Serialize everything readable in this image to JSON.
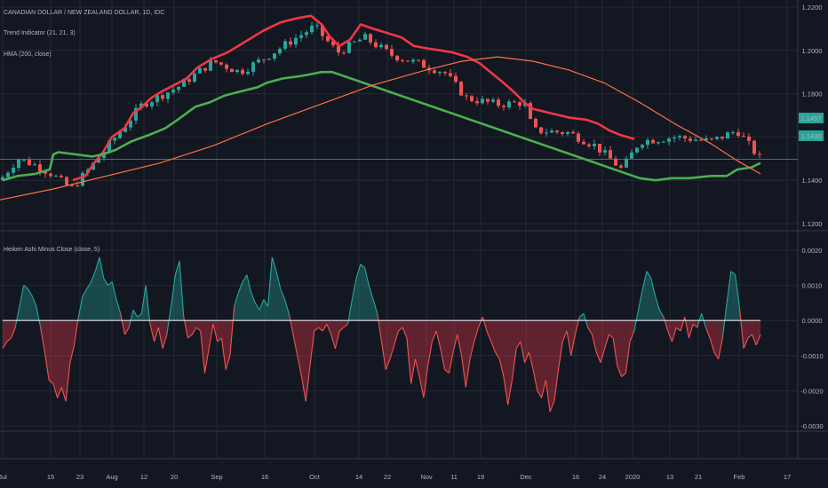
{
  "header": {
    "symbol_title": "CANADIAN DOLLAR / NEW ZEALAND DOLLAR, 1D, IDC",
    "indicator_1": "Trend Indicator (21, 21, 3)",
    "indicator_2": "HMA (200, close)",
    "sub_indicator": "Heiken Ashi Minus Close (close, 5)"
  },
  "colors": {
    "background": "#131722",
    "grid": "#2a2e39",
    "up_candle": "#26a69a",
    "down_candle": "#ef5350",
    "trend_red": "#f23645",
    "trend_green": "#4caf50",
    "hma": "#ff7043",
    "price_line": "#26a69a",
    "zero_line": "#e0e3eb",
    "area_green": "rgba(38,166,154,0.35)",
    "area_red": "rgba(242,54,69,0.35)"
  },
  "price_badges": {
    "last_price": "1.1497",
    "hma_value": "1.1430"
  },
  "chart_data": [
    {
      "type": "candlestick",
      "title": "CANADIAN DOLLAR / NEW ZEALAND DOLLAR, 1D, IDC",
      "y_ticks": [
        "1.1200",
        "1.1400",
        "1.1600",
        "1.1800",
        "1.2000",
        "1.2200"
      ],
      "ylim": [
        1.12,
        1.22
      ],
      "x_ticks": [
        "Jul",
        "15",
        "23",
        "Aug",
        "12",
        "20",
        "Sep",
        "16",
        "Oct",
        "14",
        "22",
        "Nov",
        "11",
        "19",
        "Dec",
        "16",
        "24",
        "2020",
        "13",
        "21",
        "Feb",
        "17"
      ],
      "last_price": 1.1497,
      "series": [
        {
          "name": "Trend Indicator (21, 21, 3) – resistance",
          "color": "#f23645",
          "values": [
            [
              82,
              1.14
            ],
            [
              96,
              1.142
            ],
            [
              106,
              1.148
            ],
            [
              116,
              1.153
            ],
            [
              126,
              1.16
            ],
            [
              140,
              1.164
            ],
            [
              150,
              1.171
            ],
            [
              160,
              1.174
            ],
            [
              170,
              1.178
            ],
            [
              182,
              1.181
            ],
            [
              196,
              1.184
            ],
            [
              210,
              1.187
            ],
            [
              222,
              1.192
            ],
            [
              238,
              1.196
            ],
            [
              256,
              1.199
            ],
            [
              276,
              1.204
            ],
            [
              296,
              1.209
            ],
            [
              316,
              1.213
            ],
            [
              336,
              1.215
            ],
            [
              350,
              1.216
            ],
            [
              362,
              1.212
            ],
            [
              372,
              1.206
            ],
            [
              382,
              1.202
            ],
            [
              394,
              1.205
            ],
            [
              406,
              1.212
            ],
            [
              420,
              1.21
            ],
            [
              436,
              1.208
            ],
            [
              452,
              1.206
            ],
            [
              466,
              1.202
            ],
            [
              480,
              1.201
            ],
            [
              496,
              1.2
            ],
            [
              510,
              1.199
            ],
            [
              526,
              1.197
            ],
            [
              540,
              1.194
            ],
            [
              552,
              1.19
            ],
            [
              564,
              1.186
            ],
            [
              578,
              1.181
            ],
            [
              590,
              1.176
            ],
            [
              600,
              1.173
            ],
            [
              620,
              1.171
            ],
            [
              640,
              1.169
            ],
            [
              660,
              1.168
            ],
            [
              674,
              1.166
            ],
            [
              686,
              1.163
            ],
            [
              698,
              1.161
            ],
            [
              714,
              1.159
            ]
          ]
        },
        {
          "name": "Trend Indicator (21, 21, 3) – support",
          "color": "#4caf50",
          "values": [
            [
              3,
              1.14
            ],
            [
              20,
              1.142
            ],
            [
              40,
              1.143
            ],
            [
              56,
              1.145
            ],
            [
              60,
              1.152
            ],
            [
              66,
              1.153
            ],
            [
              104,
              1.151
            ],
            [
              116,
              1.152
            ],
            [
              130,
              1.154
            ],
            [
              148,
              1.158
            ],
            [
              168,
              1.161
            ],
            [
              186,
              1.164
            ],
            [
              200,
              1.168
            ],
            [
              210,
              1.171
            ],
            [
              220,
              1.174
            ],
            [
              236,
              1.176
            ],
            [
              252,
              1.179
            ],
            [
              270,
              1.181
            ],
            [
              290,
              1.183
            ],
            [
              300,
              1.185
            ],
            [
              318,
              1.187
            ],
            [
              336,
              1.188
            ],
            [
              350,
              1.189
            ],
            [
              362,
              1.19
            ],
            [
              374,
              1.19
            ],
            [
              720,
              1.141
            ],
            [
              738,
              1.14
            ],
            [
              756,
              1.141
            ],
            [
              776,
              1.141
            ],
            [
              800,
              1.142
            ],
            [
              818,
              1.142
            ],
            [
              830,
              1.145
            ],
            [
              846,
              1.146
            ],
            [
              856,
              1.148
            ]
          ]
        },
        {
          "name": "HMA (200, close)",
          "color": "#ff7043",
          "values": [
            [
              0,
              1.131
            ],
            [
              60,
              1.136
            ],
            [
              120,
              1.142
            ],
            [
              180,
              1.148
            ],
            [
              240,
              1.156
            ],
            [
              300,
              1.166
            ],
            [
              360,
              1.175
            ],
            [
              420,
              1.184
            ],
            [
              480,
              1.191
            ],
            [
              520,
              1.195
            ],
            [
              560,
              1.197
            ],
            [
              600,
              1.195
            ],
            [
              640,
              1.191
            ],
            [
              680,
              1.185
            ],
            [
              720,
              1.176
            ],
            [
              760,
              1.166
            ],
            [
              800,
              1.157
            ],
            [
              830,
              1.149
            ],
            [
              856,
              1.143
            ]
          ]
        }
      ]
    },
    {
      "type": "area",
      "title": "Heiken Ashi Minus Close (close, 5)",
      "y_ticks": [
        "0.0020",
        "0.0010",
        "0.0000",
        "-0.0010",
        "-0.0020",
        "-0.0030"
      ],
      "ylim": [
        -0.003,
        0.002
      ],
      "x_ticks": [
        "Jul",
        "15",
        "23",
        "Aug",
        "12",
        "20",
        "Sep",
        "16",
        "Oct",
        "14",
        "22",
        "Nov",
        "11",
        "19",
        "Dec",
        "16",
        "24",
        "2020",
        "13",
        "21",
        "Feb",
        "17"
      ],
      "series": [
        {
          "name": "Heiken Ashi Minus Close",
          "values": [
            -0.0008,
            -0.0006,
            -0.0005,
            -0.0002,
            0.0004,
            0.001,
            0.0009,
            0.0007,
            0.0004,
            -0.0002,
            -0.0009,
            -0.0017,
            -0.0018,
            -0.0022,
            -0.0019,
            -0.0023,
            -0.0012,
            -0.0007,
            0.0001,
            0.0007,
            0.0009,
            0.0011,
            0.0014,
            0.0018,
            0.0012,
            0.001,
            0.0011,
            0.0006,
            0.0002,
            -0.0004,
            -0.0002,
            0.0003,
            0.0001,
            0.0002,
            0.001,
            -0.0001,
            -0.0006,
            -0.0002,
            -0.0008,
            -0.0004,
            0.0004,
            0.0013,
            0.0017,
            0.0001,
            -0.0005,
            -0.0004,
            -0.0002,
            -0.0003,
            -0.0015,
            -0.0008,
            -0.0001,
            -0.0006,
            -0.0005,
            -0.0014,
            -0.001,
            0.0004,
            0.0008,
            0.0011,
            0.0013,
            0.0008,
            0.0005,
            0.0003,
            0.0006,
            0.0004,
            0.0018,
            0.0014,
            0.0009,
            0.0006,
            0.0002,
            -0.0004,
            -0.001,
            -0.0016,
            -0.0023,
            -0.0013,
            -0.0003,
            -0.0002,
            -0.0003,
            -0.0001,
            -0.0004,
            -0.0008,
            -0.0003,
            -0.0002,
            -0.0001,
            0.0006,
            0.0012,
            0.0016,
            0.0015,
            0.001,
            0.0006,
            0.0002,
            -0.0006,
            -0.0014,
            -0.0011,
            -0.0007,
            -0.0003,
            -0.0002,
            -0.0005,
            -0.0018,
            -0.0011,
            -0.0016,
            -0.0022,
            -0.0013,
            -0.0006,
            -0.0003,
            -0.0008,
            -0.0014,
            -0.0015,
            -0.0009,
            -0.0004,
            -0.001,
            -0.0019,
            -0.0011,
            -0.0006,
            -0.0002,
            0.0001,
            -0.0003,
            -0.0006,
            -0.0009,
            -0.0011,
            -0.0016,
            -0.0024,
            -0.0017,
            -0.0008,
            -0.0006,
            -0.0012,
            -0.0009,
            -0.0014,
            -0.002,
            -0.0022,
            -0.0017,
            -0.0026,
            -0.0023,
            -0.0014,
            -0.0006,
            -0.0003,
            -0.001,
            -0.0004,
            0.0001,
            0.0002,
            -0.0002,
            -0.0004,
            -0.0009,
            -0.0012,
            -0.0008,
            -0.0004,
            -0.0005,
            -0.0013,
            -0.0016,
            -0.0015,
            -0.0006,
            -0.0003,
            0.0003,
            0.0009,
            0.0014,
            0.0012,
            0.0007,
            0.0003,
            0.0001,
            -0.0003,
            -0.0006,
            -0.0002,
            -0.0003,
            0.0001,
            -0.0005,
            -0.0001,
            -0.0002,
            0.0002,
            -0.0002,
            -0.0005,
            -0.0009,
            -0.0011,
            -0.0005,
            0.0005,
            0.0014,
            0.0013,
            0.0004,
            -0.0008,
            -0.0005,
            -0.0004,
            -0.0007,
            -0.0004
          ]
        }
      ]
    }
  ],
  "footer_axis_ticks": [
    "Jul",
    "15",
    "23",
    "Aug",
    "12",
    "20",
    "Sep",
    "16",
    "Oct",
    "14",
    "22",
    "Nov",
    "11",
    "19",
    "Dec",
    "16",
    "24",
    "2020",
    "13",
    "21",
    "Feb",
    "17"
  ]
}
